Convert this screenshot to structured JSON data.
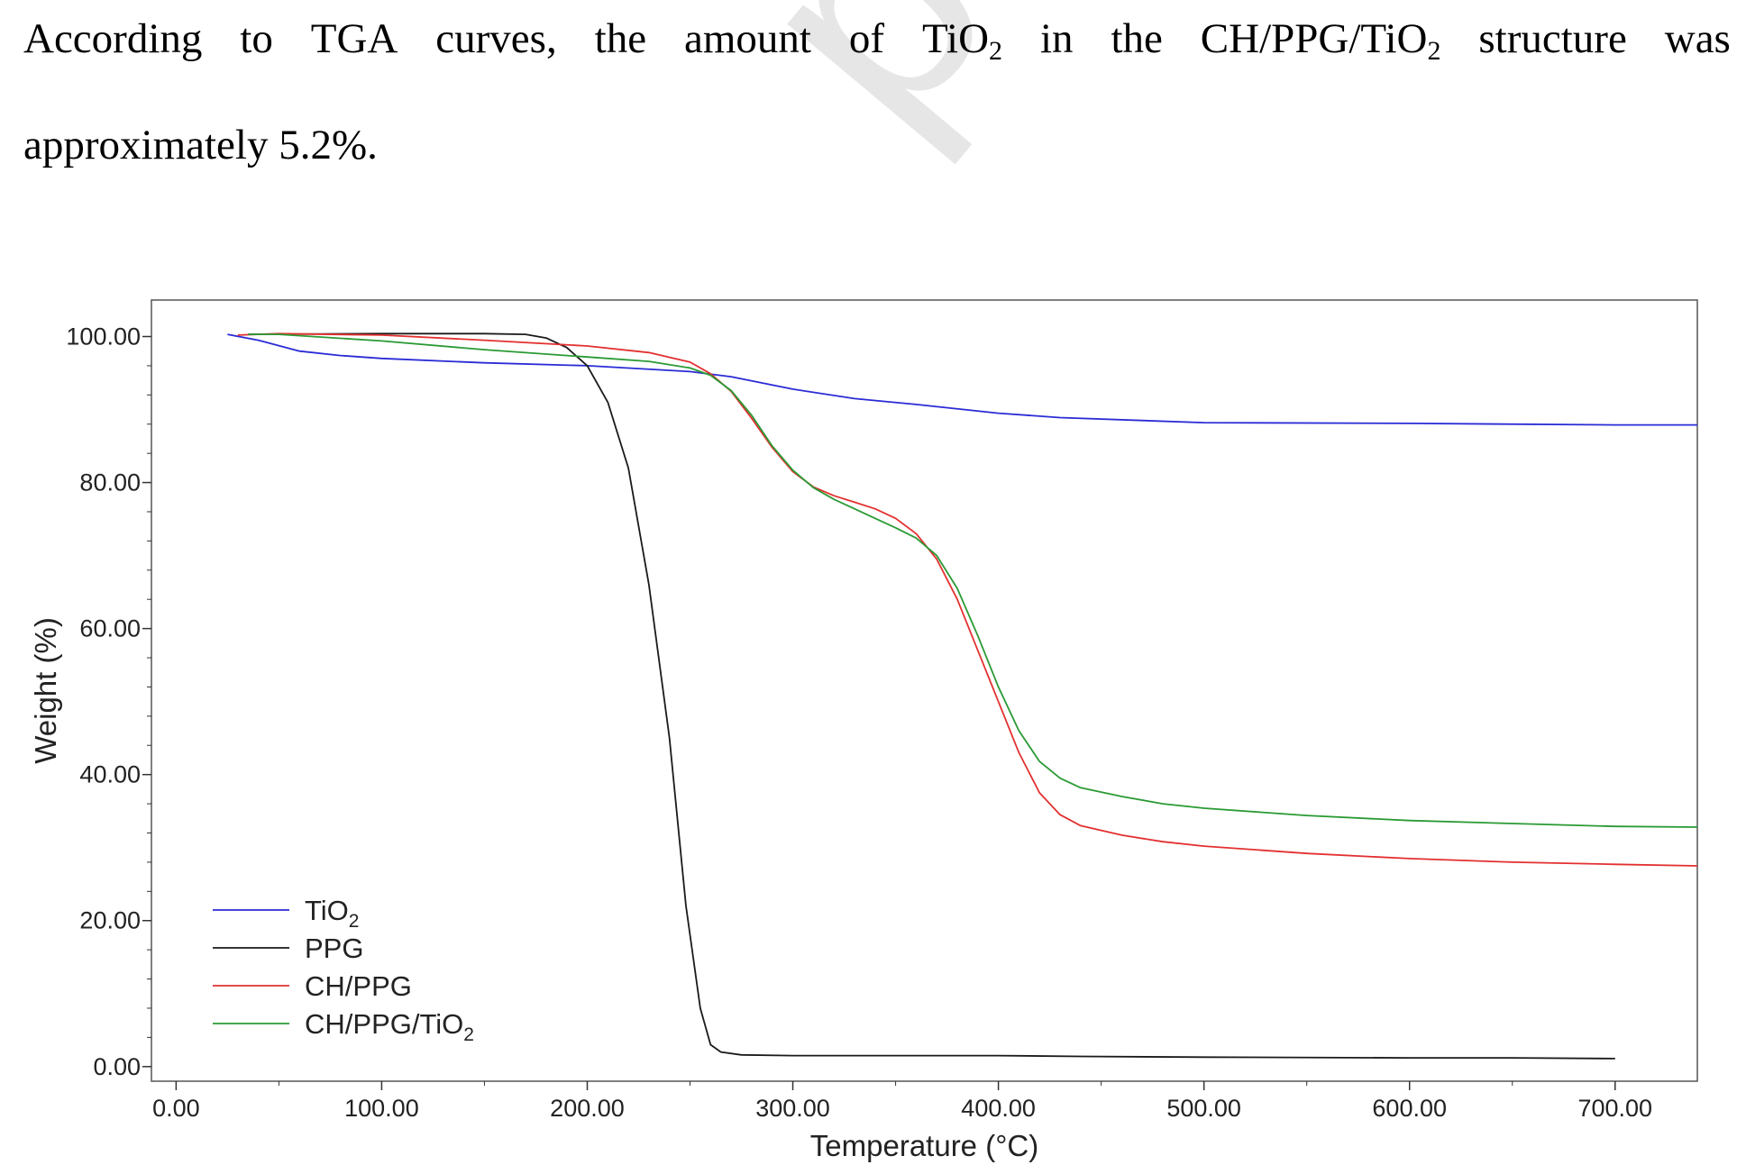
{
  "paragraph": {
    "line1_words": [
      "According",
      "to",
      "TGA",
      "curves,",
      "the",
      "amount",
      "of"
    ],
    "tio2_base": "TiO",
    "tio2_sub": "2",
    "in_word": "in",
    "the_word": "the",
    "structure_base": "CH/PPG/TiO",
    "structure_sub": "2",
    "structure_word": "structure",
    "was_word": "was",
    "line2": "approximately 5.2%."
  },
  "chart_data": {
    "type": "line",
    "xlabel": "Temperature (°C)",
    "ylabel": "Weight (%)",
    "xlim": [
      -12,
      740
    ],
    "ylim": [
      -2,
      105
    ],
    "x_ticks": [
      0,
      100,
      200,
      300,
      400,
      500,
      600,
      700
    ],
    "x_tick_labels": [
      "0.00",
      "100.00",
      "200.00",
      "300.00",
      "400.00",
      "500.00",
      "600.00",
      "700.00"
    ],
    "y_ticks": [
      0,
      20,
      40,
      60,
      80,
      100
    ],
    "y_tick_labels": [
      "0.00",
      "20.00",
      "40.00",
      "60.00",
      "80.00",
      "100.00"
    ],
    "grid": false,
    "legend_position": "bottom-left",
    "series": [
      {
        "name": "TiO2",
        "name_base": "TiO",
        "name_sub": "2",
        "color": "#2b2bd6",
        "points": [
          [
            25,
            100.3
          ],
          [
            40,
            99.5
          ],
          [
            60,
            98
          ],
          [
            80,
            97.4
          ],
          [
            100,
            97
          ],
          [
            150,
            96.4
          ],
          [
            200,
            96
          ],
          [
            250,
            95.2
          ],
          [
            270,
            94.5
          ],
          [
            300,
            92.8
          ],
          [
            330,
            91.5
          ],
          [
            360,
            90.7
          ],
          [
            400,
            89.5
          ],
          [
            430,
            88.9
          ],
          [
            470,
            88.5
          ],
          [
            500,
            88.2
          ],
          [
            600,
            88.1
          ],
          [
            700,
            87.9
          ],
          [
            740,
            87.9
          ]
        ]
      },
      {
        "name": "PPG",
        "name_base": "PPG",
        "name_sub": "",
        "color": "#1a1a1a",
        "points": [
          [
            35,
            100.3
          ],
          [
            100,
            100.4
          ],
          [
            150,
            100.4
          ],
          [
            170,
            100.3
          ],
          [
            180,
            99.8
          ],
          [
            190,
            98.5
          ],
          [
            200,
            96
          ],
          [
            210,
            91
          ],
          [
            220,
            82
          ],
          [
            230,
            66
          ],
          [
            240,
            45
          ],
          [
            248,
            22
          ],
          [
            255,
            8
          ],
          [
            260,
            3
          ],
          [
            265,
            2
          ],
          [
            275,
            1.6
          ],
          [
            300,
            1.5
          ],
          [
            400,
            1.5
          ],
          [
            440,
            1.4
          ],
          [
            500,
            1.3
          ],
          [
            600,
            1.2
          ],
          [
            650,
            1.2
          ],
          [
            700,
            1.1
          ]
        ]
      },
      {
        "name": "CH/PPG",
        "name_base": "CH/PPG",
        "name_sub": "",
        "color": "#e33030",
        "points": [
          [
            30,
            100.2
          ],
          [
            50,
            100.4
          ],
          [
            100,
            100.2
          ],
          [
            150,
            99.5
          ],
          [
            200,
            98.7
          ],
          [
            230,
            97.8
          ],
          [
            250,
            96.5
          ],
          [
            260,
            94.9
          ],
          [
            270,
            92.5
          ],
          [
            280,
            88.8
          ],
          [
            290,
            84.8
          ],
          [
            300,
            81.5
          ],
          [
            310,
            79.4
          ],
          [
            320,
            78.2
          ],
          [
            330,
            77.3
          ],
          [
            340,
            76.4
          ],
          [
            350,
            75.1
          ],
          [
            360,
            73
          ],
          [
            370,
            69.5
          ],
          [
            380,
            64
          ],
          [
            390,
            57
          ],
          [
            400,
            50
          ],
          [
            410,
            43
          ],
          [
            420,
            37.5
          ],
          [
            430,
            34.5
          ],
          [
            440,
            33
          ],
          [
            460,
            31.7
          ],
          [
            480,
            30.8
          ],
          [
            500,
            30.2
          ],
          [
            550,
            29.2
          ],
          [
            600,
            28.5
          ],
          [
            650,
            28
          ],
          [
            700,
            27.7
          ],
          [
            740,
            27.5
          ]
        ]
      },
      {
        "name": "CH/PPG/TiO2",
        "name_base": "CH/PPG/TiO",
        "name_sub": "2",
        "color": "#2a9a34",
        "points": [
          [
            35,
            100.3
          ],
          [
            50,
            100.3
          ],
          [
            100,
            99.4
          ],
          [
            150,
            98.2
          ],
          [
            200,
            97.2
          ],
          [
            230,
            96.6
          ],
          [
            250,
            95.7
          ],
          [
            260,
            94.7
          ],
          [
            270,
            92.6
          ],
          [
            280,
            89.2
          ],
          [
            290,
            85
          ],
          [
            300,
            81.7
          ],
          [
            310,
            79.3
          ],
          [
            320,
            77.7
          ],
          [
            330,
            76.4
          ],
          [
            340,
            75.1
          ],
          [
            350,
            73.8
          ],
          [
            360,
            72.4
          ],
          [
            370,
            70
          ],
          [
            380,
            65.5
          ],
          [
            390,
            59
          ],
          [
            400,
            52
          ],
          [
            410,
            46
          ],
          [
            420,
            41.8
          ],
          [
            430,
            39.5
          ],
          [
            440,
            38.2
          ],
          [
            460,
            37
          ],
          [
            480,
            36
          ],
          [
            500,
            35.4
          ],
          [
            550,
            34.4
          ],
          [
            600,
            33.7
          ],
          [
            650,
            33.3
          ],
          [
            700,
            32.9
          ],
          [
            740,
            32.8
          ]
        ]
      }
    ]
  }
}
